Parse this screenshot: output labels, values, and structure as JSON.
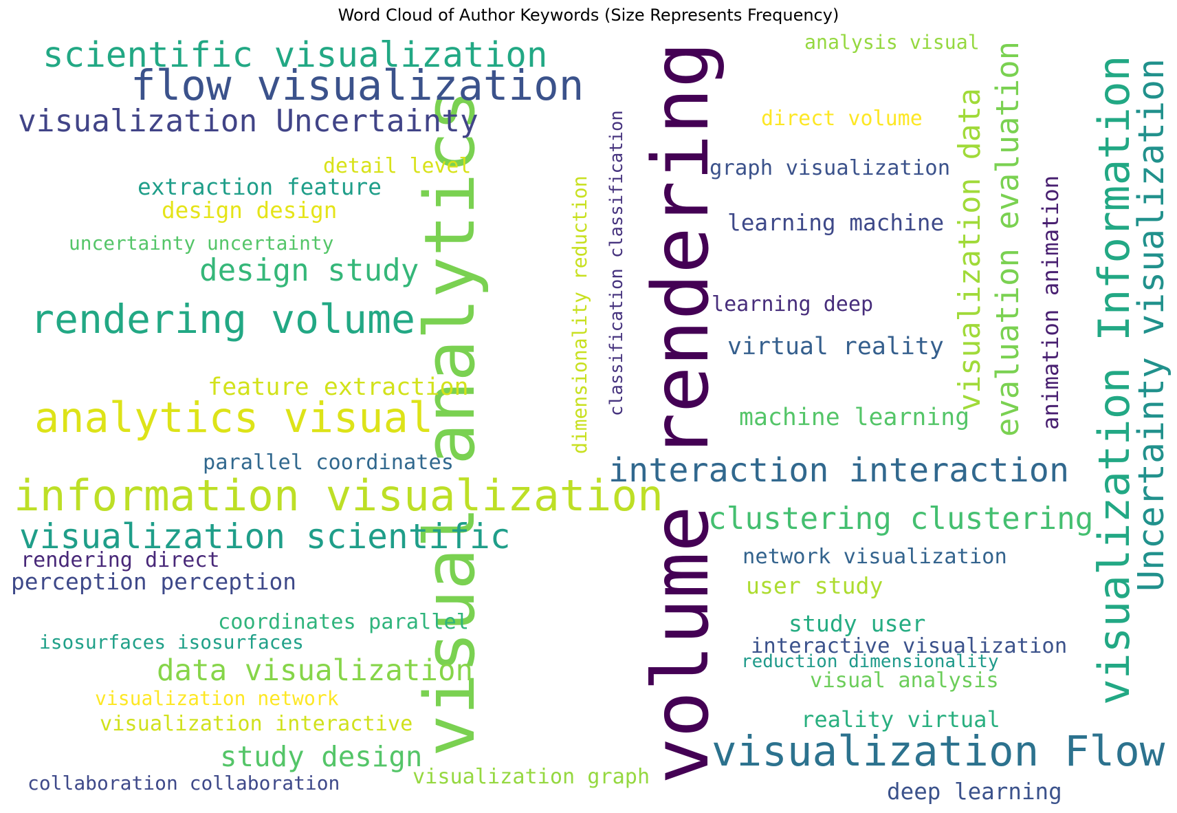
{
  "title": "Word Cloud of Author Keywords (Size Represents Frequency)",
  "words": [
    {
      "text": "volume rendering",
      "color": "#440154"
    },
    {
      "text": "visual analytics",
      "color": "#7ad151"
    },
    {
      "text": "information visualization",
      "color": "#bddf26"
    },
    {
      "text": "visualization Information",
      "color": "#22a884"
    },
    {
      "text": "flow visualization",
      "color": "#3b528b"
    },
    {
      "text": "visualization Flow",
      "color": "#2c728e"
    },
    {
      "text": "rendering volume",
      "color": "#22a884"
    },
    {
      "text": "analytics visual",
      "color": "#dde318"
    },
    {
      "text": "Uncertainty visualization",
      "color": "#21918c"
    },
    {
      "text": "interaction interaction",
      "color": "#31688e"
    },
    {
      "text": "scientific visualization",
      "color": "#22a884"
    },
    {
      "text": "visualization scientific",
      "color": "#1f9e89"
    },
    {
      "text": "visualization Uncertainty",
      "color": "#414487"
    },
    {
      "text": "evaluation evaluation",
      "color": "#7ad151"
    },
    {
      "text": "visualization data",
      "color": "#a0da39"
    },
    {
      "text": "clustering clustering",
      "color": "#44bf70"
    },
    {
      "text": "design study",
      "color": "#35b779"
    },
    {
      "text": "study design",
      "color": "#54c568"
    },
    {
      "text": "data visualization",
      "color": "#86d549"
    },
    {
      "text": "feature extraction",
      "color": "#d2e21b"
    },
    {
      "text": "virtual reality",
      "color": "#355f8d"
    },
    {
      "text": "machine learning",
      "color": "#54c568"
    },
    {
      "text": "learning machine",
      "color": "#3e4989"
    },
    {
      "text": "perception perception",
      "color": "#3e4989"
    },
    {
      "text": "extraction feature",
      "color": "#1f9e89"
    },
    {
      "text": "design design",
      "color": "#e5e419"
    },
    {
      "text": "parallel coordinates",
      "color": "#31688e"
    },
    {
      "text": "coordinates parallel",
      "color": "#2fb47c"
    },
    {
      "text": "graph visualization",
      "color": "#3b528b"
    },
    {
      "text": "network visualization",
      "color": "#33638d"
    },
    {
      "text": "user study",
      "color": "#addc30"
    },
    {
      "text": "study user",
      "color": "#25ac82"
    },
    {
      "text": "interactive visualization",
      "color": "#3b528b"
    },
    {
      "text": "visual analysis",
      "color": "#6ccd5a"
    },
    {
      "text": "reality virtual",
      "color": "#29af7f"
    },
    {
      "text": "deep learning",
      "color": "#3b528b"
    },
    {
      "text": "learning deep",
      "color": "#472d7b"
    },
    {
      "text": "direct volume",
      "color": "#fde725"
    },
    {
      "text": "detail level",
      "color": "#d8e219"
    },
    {
      "text": "animation animation",
      "color": "#481f70"
    },
    {
      "text": "rendering direct",
      "color": "#482878"
    },
    {
      "text": "isosurfaces isosurfaces",
      "color": "#1fa088"
    },
    {
      "text": "visualization network",
      "color": "#fde725"
    },
    {
      "text": "visualization interactive",
      "color": "#d0e11c"
    },
    {
      "text": "visualization graph",
      "color": "#95d840"
    },
    {
      "text": "collaboration collaboration",
      "color": "#3e4989"
    },
    {
      "text": "uncertainty uncertainty",
      "color": "#54c568"
    },
    {
      "text": "analysis visual",
      "color": "#95d840"
    },
    {
      "text": "classification classification",
      "color": "#46337e"
    },
    {
      "text": "dimensionality reduction",
      "color": "#c8e020"
    },
    {
      "text": "reduction dimensionality",
      "color": "#1f9a8a"
    }
  ]
}
